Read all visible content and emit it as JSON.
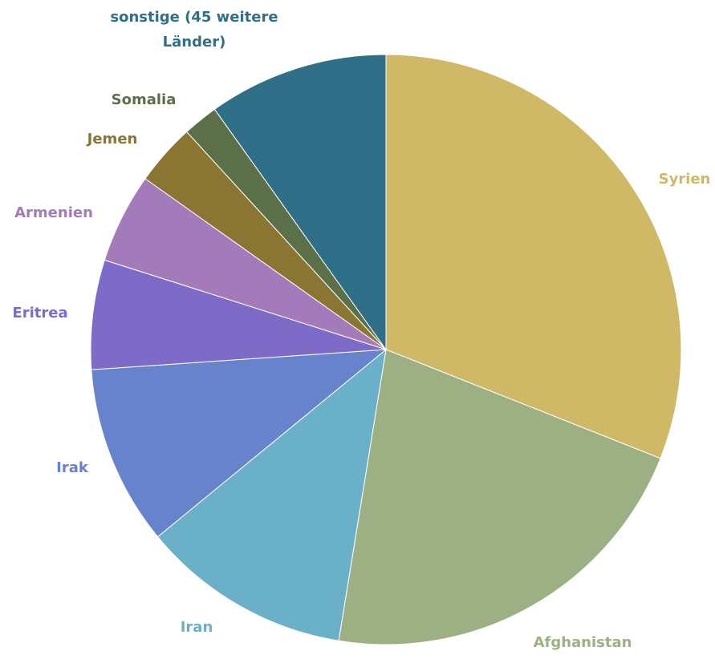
{
  "chart_data": {
    "type": "pie",
    "title": "",
    "legend": "none",
    "slices": [
      {
        "label": "Syrien",
        "value": 32.1,
        "color": "#CFB967"
      },
      {
        "label": "Afghanistan",
        "value": 22.3,
        "color": "#9DB083"
      },
      {
        "label": "Iran",
        "value": 11.9,
        "color": "#6BB0C9"
      },
      {
        "label": "Irak",
        "value": 10.2,
        "color": "#6683CC"
      },
      {
        "label": "Eritrea",
        "value": 6.2,
        "color": "#7E6BC8"
      },
      {
        "label": "Armenien",
        "value": 5.1,
        "color": "#A37ABA"
      },
      {
        "label": "Jemen",
        "value": 3.5,
        "color": "#8B7533"
      },
      {
        "label": "Somalia",
        "value": 2.0,
        "color": "#5B7048"
      },
      {
        "label": "sonstige (45 weitere Länder)",
        "label_lines": [
          "sonstige (45 weitere",
          "Länder)"
        ],
        "value": 10.2,
        "color": "#2F6F87"
      }
    ]
  }
}
